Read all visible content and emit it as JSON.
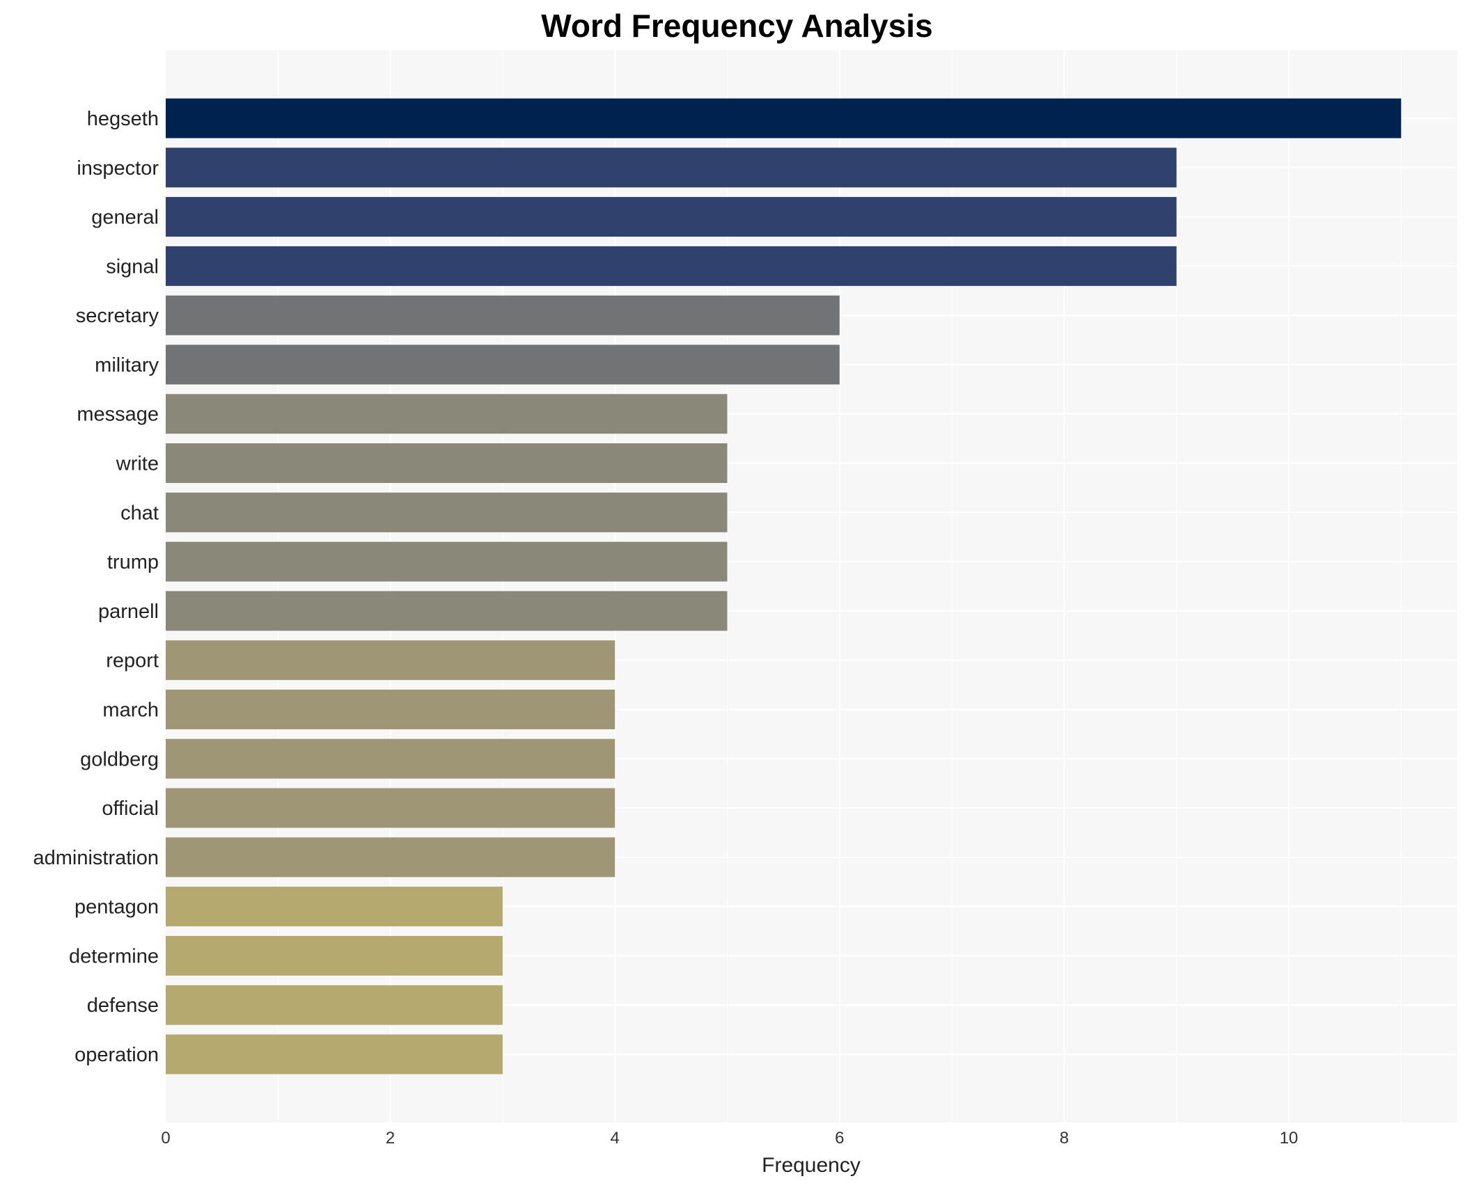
{
  "chart_data": {
    "type": "bar",
    "orientation": "horizontal",
    "title": "Word Frequency Analysis",
    "xlabel": "Frequency",
    "ylabel": "",
    "xlim": [
      0,
      11.5
    ],
    "xticks": [
      0,
      2,
      4,
      6,
      8,
      10
    ],
    "grid": true,
    "categories": [
      "hegseth",
      "inspector",
      "general",
      "signal",
      "secretary",
      "military",
      "message",
      "write",
      "chat",
      "trump",
      "parnell",
      "report",
      "march",
      "goldberg",
      "official",
      "administration",
      "pentagon",
      "determine",
      "defense",
      "operation"
    ],
    "values": [
      11,
      9,
      9,
      9,
      6,
      6,
      5,
      5,
      5,
      5,
      5,
      4,
      4,
      4,
      4,
      4,
      3,
      3,
      3,
      3
    ],
    "colors": [
      "#00224e",
      "#2f416c",
      "#2f416c",
      "#2f416c",
      "#727374",
      "#727374",
      "#8a8878",
      "#8a8878",
      "#8a8878",
      "#8a8878",
      "#8a8878",
      "#9e9675",
      "#9e9675",
      "#9e9675",
      "#9e9675",
      "#9e9675",
      "#b5a96f",
      "#b5a96f",
      "#b5a96f",
      "#b5a96f"
    ],
    "background": "#f7f7f7"
  }
}
